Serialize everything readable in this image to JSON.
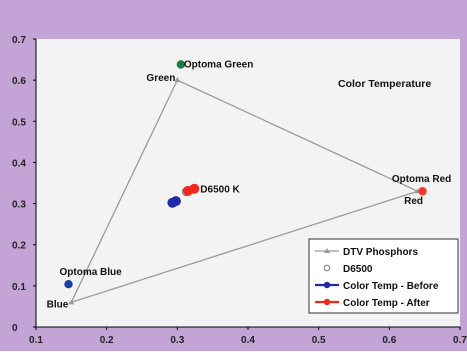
{
  "colors": {
    "frame_background": "#c4a3d6",
    "plot_background": "#f3f3f3",
    "dtv_phosphors": "#9a9a9a",
    "d6500": "#7a7a7a",
    "color_temp_before": "#1f2aa8",
    "color_temp_after": "#f0281e",
    "optoma_green": "#1f7a4a",
    "optoma_red": "#ef3a2a",
    "optoma_blue": "#1b3fa0"
  },
  "chart_data": {
    "type": "scatter",
    "title": "Color Temperature",
    "xlabel": "",
    "ylabel": "",
    "xlim": [
      0.1,
      0.7
    ],
    "ylim": [
      0,
      0.7
    ],
    "x_ticks": [
      "0.1",
      "0.2",
      "0.3",
      "0.4",
      "0.5",
      "0.6",
      "0.7"
    ],
    "y_ticks": [
      "0",
      "0.1",
      "0.2",
      "0.3",
      "0.4",
      "0.5",
      "0.6",
      "0.7"
    ],
    "grid": false,
    "legend_position": "bottom-right",
    "series": [
      {
        "name": "DTV Phosphors",
        "kind": "triangle",
        "color_key": "dtv_phosphors",
        "points": [
          {
            "x": 0.15,
            "y": 0.06
          },
          {
            "x": 0.3,
            "y": 0.6
          },
          {
            "x": 0.64,
            "y": 0.33
          }
        ]
      },
      {
        "name": "D6500",
        "kind": "point",
        "color_key": "d6500",
        "points": [
          {
            "x": 0.3127,
            "y": 0.329
          }
        ]
      },
      {
        "name": "Color Temp - Before",
        "kind": "point",
        "color_key": "color_temp_before",
        "points": [
          {
            "x": 0.293,
            "y": 0.302
          },
          {
            "x": 0.298,
            "y": 0.306
          }
        ]
      },
      {
        "name": "Color Temp - After",
        "kind": "point",
        "color_key": "color_temp_after",
        "points": [
          {
            "x": 0.315,
            "y": 0.331
          },
          {
            "x": 0.324,
            "y": 0.336
          }
        ]
      }
    ],
    "markers": [
      {
        "label": "Optoma Green",
        "x": 0.305,
        "y": 0.638,
        "color_key": "optoma_green"
      },
      {
        "label": "Optoma Red",
        "x": 0.647,
        "y": 0.33,
        "color_key": "optoma_red"
      },
      {
        "label": "Optoma Blue",
        "x": 0.146,
        "y": 0.104,
        "color_key": "optoma_blue"
      }
    ],
    "vertex_labels": [
      {
        "label": "Green",
        "x": 0.3,
        "y": 0.6
      },
      {
        "label": "Red",
        "x": 0.64,
        "y": 0.33
      },
      {
        "label": "Blue",
        "x": 0.15,
        "y": 0.06
      }
    ],
    "annotations": [
      {
        "text": "D6500 K",
        "x": 0.3127,
        "y": 0.329
      }
    ]
  }
}
